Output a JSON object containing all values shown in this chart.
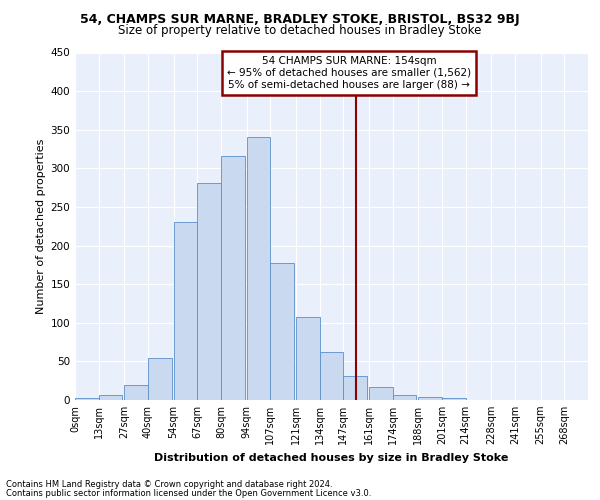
{
  "title1": "54, CHAMPS SUR MARNE, BRADLEY STOKE, BRISTOL, BS32 9BJ",
  "title2": "Size of property relative to detached houses in Bradley Stoke",
  "xlabel": "Distribution of detached houses by size in Bradley Stoke",
  "ylabel": "Number of detached properties",
  "bin_labels": [
    "0sqm",
    "13sqm",
    "27sqm",
    "40sqm",
    "54sqm",
    "67sqm",
    "80sqm",
    "94sqm",
    "107sqm",
    "121sqm",
    "134sqm",
    "147sqm",
    "161sqm",
    "174sqm",
    "188sqm",
    "201sqm",
    "214sqm",
    "228sqm",
    "241sqm",
    "255sqm",
    "268sqm"
  ],
  "bin_edges": [
    0,
    13,
    27,
    40,
    54,
    67,
    80,
    94,
    107,
    121,
    134,
    147,
    161,
    174,
    188,
    201,
    214,
    228,
    241,
    255,
    268
  ],
  "bar_heights": [
    3,
    6,
    20,
    54,
    230,
    281,
    316,
    340,
    177,
    107,
    62,
    31,
    17,
    7,
    4,
    3,
    0,
    0,
    0,
    0
  ],
  "bar_color": "#c9d9f0",
  "bar_edge_color": "#5b8fc9",
  "vline_x": 154,
  "vline_color": "#8b0000",
  "annotation_text": "54 CHAMPS SUR MARNE: 154sqm\n← 95% of detached houses are smaller (1,562)\n5% of semi-detached houses are larger (88) →",
  "annotation_box_color": "#8b0000",
  "ylim": [
    0,
    450
  ],
  "yticks": [
    0,
    50,
    100,
    150,
    200,
    250,
    300,
    350,
    400,
    450
  ],
  "footnote1": "Contains HM Land Registry data © Crown copyright and database right 2024.",
  "footnote2": "Contains public sector information licensed under the Open Government Licence v3.0.",
  "bg_color": "#eaf0fb",
  "fig_bg_color": "#ffffff"
}
